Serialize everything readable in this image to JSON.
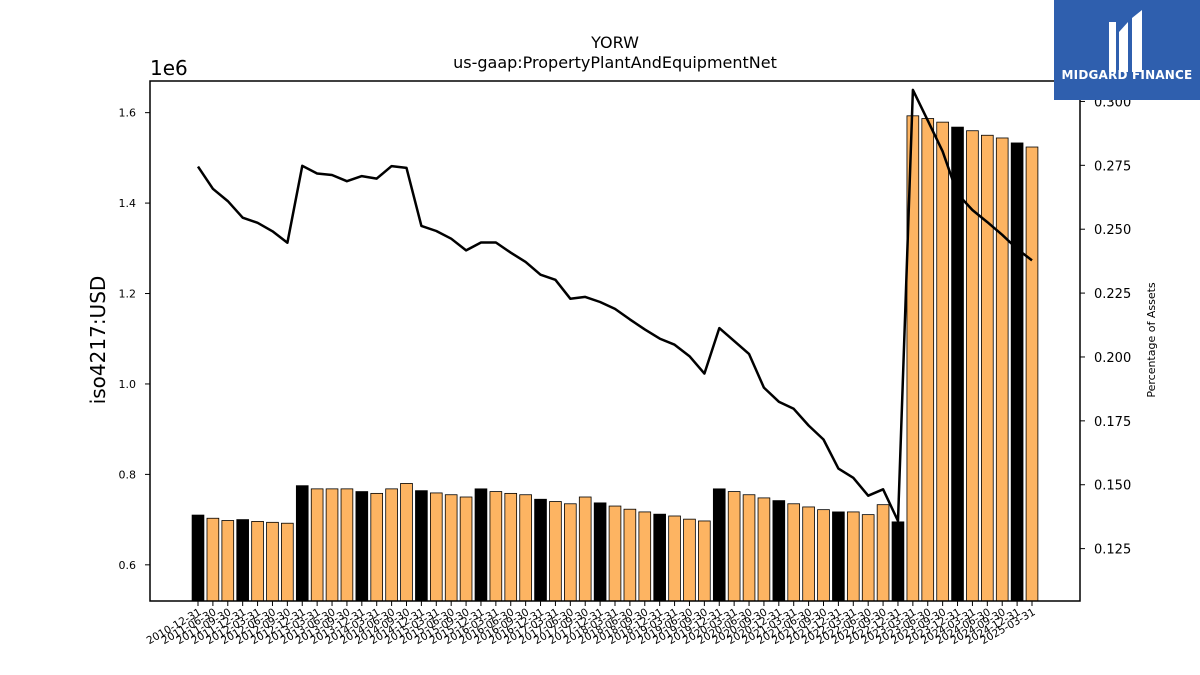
{
  "chart_data": {
    "type": "bar",
    "title": "YORW",
    "subtitle": "us-gaap:PropertyPlantAndEquipmentNet",
    "ylabel": "iso4217:USD",
    "y_offset_label": "1e6",
    "y2label": "Percentage of Assets",
    "ylim": [
      0.52,
      1.67
    ],
    "y2lim": [
      0.1045,
      0.308
    ],
    "yticks": [
      "0.6",
      "0.8",
      "1.0",
      "1.2",
      "1.4",
      "1.6"
    ],
    "y2ticks": [
      "0.125",
      "0.150",
      "0.175",
      "0.200",
      "0.225",
      "0.250",
      "0.275",
      "0.300"
    ],
    "categories": [
      "2010-12-31",
      "2011-06-30",
      "2011-09-30",
      "2011-12-31",
      "2012-03-31",
      "2012-06-30",
      "2012-09-30",
      "2012-12-31",
      "2013-03-31",
      "2013-06-30",
      "2013-09-30",
      "2013-12-31",
      "2014-03-31",
      "2014-06-30",
      "2014-09-30",
      "2014-12-31",
      "2015-03-31",
      "2015-06-30",
      "2015-09-30",
      "2015-12-31",
      "2016-03-31",
      "2016-06-30",
      "2016-09-30",
      "2016-12-31",
      "2017-03-31",
      "2017-06-30",
      "2017-09-30",
      "2017-12-31",
      "2018-03-31",
      "2018-06-30",
      "2018-09-30",
      "2018-12-31",
      "2019-03-31",
      "2019-06-30",
      "2019-09-30",
      "2019-12-31",
      "2020-03-31",
      "2020-06-30",
      "2020-09-30",
      "2020-12-31",
      "2021-03-31",
      "2021-06-30",
      "2021-09-30",
      "2021-12-31",
      "2022-03-31",
      "2022-06-30",
      "2022-09-30",
      "2022-12-31",
      "2023-03-31",
      "2023-06-30",
      "2023-09-30",
      "2023-12-31",
      "2024-03-31",
      "2024-06-30",
      "2024-09-30",
      "2024-12-31",
      "2025-03-31"
    ],
    "series": [
      {
        "kind": "bar",
        "values": [
          0.71,
          0.703,
          0.698,
          0.7,
          0.696,
          0.694,
          0.692,
          0.775,
          0.768,
          0.768,
          0.768,
          0.762,
          0.758,
          0.768,
          0.78,
          0.764,
          0.759,
          0.755,
          0.75,
          0.768,
          0.762,
          0.758,
          0.755,
          0.745,
          0.74,
          0.735,
          0.75,
          0.737,
          0.73,
          0.723,
          0.717,
          0.712,
          0.708,
          0.701,
          0.697,
          0.768,
          0.762,
          0.755,
          0.748,
          0.742,
          0.735,
          0.728,
          0.722,
          0.717,
          0.717,
          0.711,
          0.733,
          0.695,
          1.593,
          1.587,
          1.579,
          1.568,
          1.56,
          1.55,
          1.544,
          1.533,
          1.524
        ],
        "highlight_indices": [
          0,
          3,
          7,
          11,
          15,
          19,
          23,
          27,
          31,
          35,
          39,
          43,
          47,
          51,
          55
        ]
      },
      {
        "kind": "line",
        "axis": "right",
        "values": [
          0.2745,
          0.2658,
          0.261,
          0.2545,
          0.2525,
          0.2492,
          0.2447,
          0.2748,
          0.2718,
          0.2712,
          0.2688,
          0.2708,
          0.2698,
          0.2747,
          0.274,
          0.2513,
          0.2493,
          0.2463,
          0.2417,
          0.2448,
          0.2448,
          0.2408,
          0.2372,
          0.2322,
          0.2302,
          0.2228,
          0.2235,
          0.2215,
          0.2188,
          0.2147,
          0.2108,
          0.2072,
          0.2048,
          0.2003,
          0.1935,
          0.2113,
          0.2063,
          0.2012,
          0.188,
          0.1825,
          0.1797,
          0.1732,
          0.1677,
          0.1563,
          0.1527,
          0.1457,
          0.1482,
          0.1358,
          0.3045,
          0.2925,
          0.2805,
          0.2638,
          0.2575,
          0.2528,
          0.2478,
          0.2423,
          0.2378
        ]
      }
    ],
    "colors": {
      "bar": "#fdb462",
      "bar_highlight": "#000000",
      "line": "#000000",
      "logo_bg": "#2f5fae"
    }
  },
  "logo": {
    "text": "MIDGARD FINANCE",
    "icon": "midgard-logo-icon"
  }
}
